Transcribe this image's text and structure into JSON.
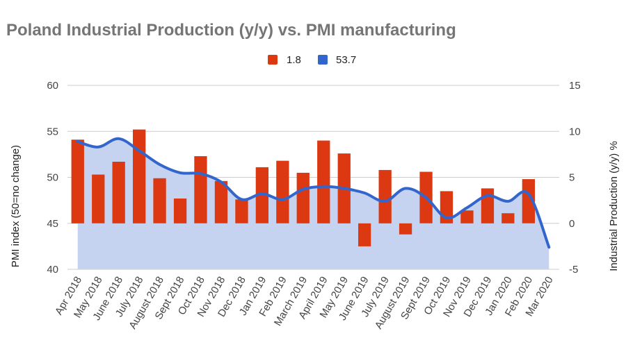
{
  "chart_data": {
    "type": "bar+area",
    "title": "Poland Industrial Production (y/y) vs. PMI manufacturing",
    "legend_position": "top",
    "categories": [
      "Apr 2018",
      "May 2018",
      "June 2018",
      "July 2018",
      "August 2018",
      "Sept 2018",
      "Oct 2018",
      "Nov 2018",
      "Dec 2018",
      "Jan 2019",
      "Feb 2019",
      "March 2019",
      "April 2019",
      "May 2019",
      "June 2019",
      "July 2019",
      "August 2019",
      "Sept 2019",
      "Oct 2019",
      "Nov 2019",
      "Dec 2019",
      "Jan 2020",
      "Feb 2020",
      "Mar 2020"
    ],
    "series": [
      {
        "name": "1.8",
        "type": "bar",
        "axis": "right",
        "color": "#dc3912",
        "values": [
          9.1,
          5.3,
          6.7,
          10.2,
          4.9,
          2.7,
          7.3,
          4.6,
          2.6,
          6.1,
          6.8,
          5.5,
          9.0,
          7.6,
          -2.5,
          5.8,
          -1.2,
          5.6,
          3.5,
          1.4,
          3.8,
          1.1,
          4.8,
          null
        ]
      },
      {
        "name": "53.7",
        "type": "area-line",
        "axis": "left",
        "color": "#3366cc",
        "fill": "#c5d3f0",
        "values": [
          53.9,
          53.3,
          54.2,
          52.9,
          51.4,
          50.5,
          50.4,
          49.5,
          47.6,
          48.2,
          47.6,
          48.7,
          49.0,
          48.8,
          48.3,
          47.4,
          48.8,
          47.8,
          45.6,
          46.7,
          48.0,
          47.4,
          48.2,
          42.4
        ]
      }
    ],
    "y_left": {
      "label": "PMI index (50=no change)",
      "range": [
        40,
        60
      ],
      "ticks": [
        40,
        45,
        50,
        55,
        60
      ]
    },
    "y_right": {
      "label": "Industrial Production (y/y) %",
      "range": [
        -5,
        15
      ],
      "ticks": [
        -5,
        0,
        5,
        10,
        15
      ]
    },
    "grid": true
  }
}
